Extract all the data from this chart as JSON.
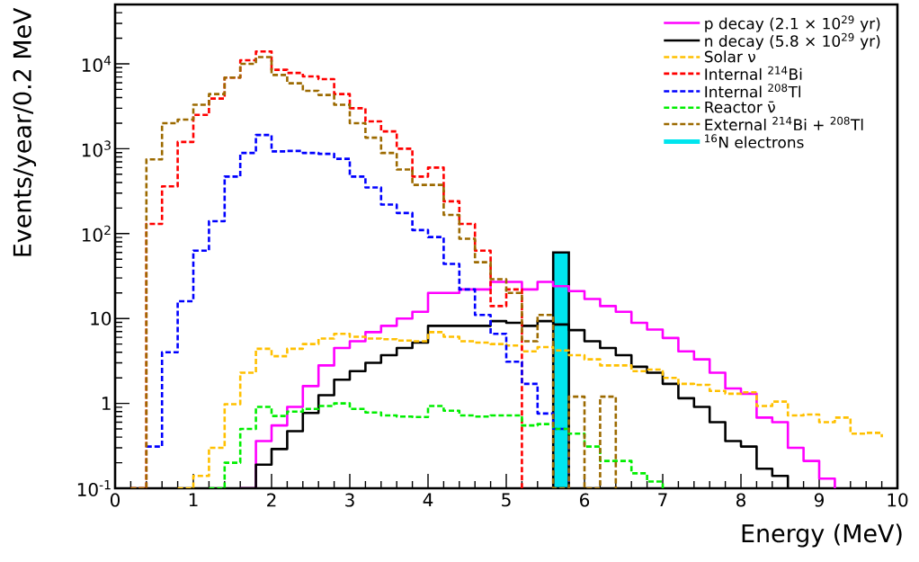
{
  "chart_data": {
    "type": "step",
    "xlabel": "Energy (MeV)",
    "ylabel": "Events/year/0.2 MeV",
    "x": [
      0,
      0.2,
      0.4,
      0.6,
      0.8,
      1,
      1.2,
      1.4,
      1.6,
      1.8,
      2,
      2.2,
      2.4,
      2.6,
      2.8,
      3,
      3.2,
      3.4,
      3.6,
      3.8,
      4,
      4.2,
      4.4,
      4.6,
      4.8,
      5,
      5.2,
      5.4,
      5.6,
      5.8,
      6,
      6.2,
      6.4,
      6.6,
      6.8,
      7,
      7.2,
      7.4,
      7.6,
      7.8,
      8,
      8.2,
      8.4,
      8.6,
      8.8,
      9,
      9.2,
      9.4,
      9.6,
      9.8
    ],
    "xlim": [
      0,
      10
    ],
    "xticks": [
      0,
      1,
      2,
      3,
      4,
      5,
      6,
      7,
      8,
      9,
      10
    ],
    "ylim": [
      0.1,
      50000
    ],
    "log": "y",
    "yticks": [
      {
        "value": 0.1,
        "label": "10$^{-1}$"
      },
      1,
      10,
      {
        "value": 100,
        "label": "10$^{2}$"
      },
      {
        "value": 1000,
        "label": "10$^{3}$"
      },
      {
        "value": 10000,
        "label": "10$^{4}$"
      }
    ],
    "legend": "top right",
    "series": [
      {
        "name": "p decay (2.1 × 10$^{29}$ yr)",
        "line_style": "solid",
        "color": "#ff00ff",
        "values": [
          null,
          null,
          null,
          null,
          null,
          null,
          null,
          null,
          0.1,
          0.36,
          0.55,
          0.91,
          1.6,
          2.8,
          4.5,
          5.4,
          6.9,
          8.2,
          10,
          12,
          20,
          20,
          22,
          22,
          27,
          27,
          22,
          27,
          24,
          21,
          17,
          14,
          12,
          8.9,
          7.4,
          5.9,
          4.1,
          3.3,
          2.3,
          1.5,
          1.3,
          0.68,
          0.6,
          0.3,
          0.21,
          0.13,
          0.1,
          null,
          null,
          null
        ]
      },
      {
        "name": "n decay (5.8 × 10$^{29}$ yr)",
        "line_style": "solid",
        "color": "#000000",
        "values": [
          null,
          null,
          null,
          null,
          null,
          null,
          null,
          null,
          0.1,
          0.19,
          0.29,
          0.47,
          0.77,
          1.25,
          1.9,
          2.4,
          3.0,
          3.7,
          4.5,
          5.2,
          8.2,
          8.2,
          8.2,
          8.2,
          9.3,
          8.9,
          8.2,
          9.3,
          8.5,
          7.3,
          5.4,
          4.5,
          3.7,
          2.7,
          2.3,
          1.7,
          1.15,
          0.91,
          0.6,
          0.36,
          0.31,
          0.17,
          0.14,
          0.1,
          null,
          null,
          null,
          null,
          null,
          null
        ]
      },
      {
        "name": "Solar ν",
        "line_style": "dashed",
        "color": "#ffc000",
        "values": [
          null,
          null,
          null,
          null,
          0.1,
          0.14,
          0.3,
          0.98,
          2.3,
          4.4,
          3.6,
          4.4,
          5.0,
          5.8,
          6.6,
          6.1,
          5.8,
          5.7,
          5.5,
          5.4,
          6.9,
          6.1,
          5.4,
          5.2,
          5.0,
          4.8,
          4.1,
          4.6,
          4.2,
          3.7,
          3.3,
          2.8,
          2.8,
          2.4,
          2.5,
          2.0,
          1.7,
          1.65,
          1.4,
          1.3,
          1.35,
          0.93,
          1.05,
          0.72,
          0.74,
          0.6,
          0.68,
          0.44,
          0.45,
          0.4
        ]
      },
      {
        "name": "Internal $^{214}$Bi",
        "line_style": "dashed",
        "color": "#ff0000",
        "values": [
          null,
          0.1,
          130,
          360,
          1200,
          2500,
          3900,
          6900,
          11000,
          14000,
          8500,
          7800,
          7100,
          6600,
          4400,
          3000,
          2100,
          1600,
          1000,
          470,
          600,
          240,
          130,
          63,
          14,
          22,
          0.1,
          null,
          null,
          null,
          null,
          null,
          null,
          null,
          null,
          null,
          null,
          null,
          null,
          null,
          null,
          null,
          null,
          null,
          null,
          null,
          null,
          null,
          null,
          null
        ]
      },
      {
        "name": "Internal $^{208}$Tl",
        "line_style": "dashed",
        "color": "#0000ff",
        "values": [
          null,
          null,
          0.31,
          4.0,
          16,
          63,
          140,
          470,
          890,
          1450,
          930,
          940,
          890,
          870,
          760,
          470,
          350,
          220,
          175,
          110,
          91,
          44,
          22,
          11,
          6.6,
          3.1,
          1.7,
          0.76,
          0.5,
          0.1,
          null,
          null,
          null,
          null,
          null,
          null,
          null,
          null,
          null,
          null,
          null,
          null,
          null,
          null,
          null,
          null,
          null,
          null,
          null,
          null
        ]
      },
      {
        "name": "Reactor ν̄",
        "line_style": "dashed",
        "color": "#00ee00",
        "values": [
          null,
          null,
          null,
          null,
          null,
          null,
          0.1,
          0.2,
          0.5,
          0.91,
          0.71,
          0.8,
          0.86,
          0.93,
          1.0,
          0.86,
          0.78,
          0.72,
          0.7,
          0.69,
          0.93,
          0.82,
          0.72,
          0.7,
          0.72,
          0.72,
          0.55,
          0.57,
          0.5,
          0.44,
          0.31,
          0.21,
          0.21,
          0.15,
          0.12,
          0.1,
          null,
          null,
          null,
          null,
          null,
          null,
          null,
          null,
          null,
          null,
          null,
          null,
          null,
          null
        ]
      },
      {
        "name": "External $^{214}$Bi + $^{208}$Tl",
        "line_style": "dashed",
        "color": "#9c6a00",
        "values": [
          null,
          0.1,
          750,
          2000,
          2200,
          3300,
          4400,
          6900,
          10000,
          12000,
          7400,
          5900,
          4800,
          4300,
          3300,
          2000,
          1350,
          890,
          570,
          375,
          375,
          166,
          87,
          46,
          29,
          20,
          5.4,
          11,
          0.1,
          1.2,
          0.1,
          1.2,
          0.1,
          null,
          null,
          null,
          null,
          null,
          null,
          null,
          null,
          null,
          null,
          null,
          null,
          null,
          null,
          null,
          null,
          null
        ]
      },
      {
        "name": "$^{16}$N electrons",
        "type": "histogram",
        "color": "#00e5ee",
        "bins": [
          5.6,
          5.8
        ],
        "values": [
          60
        ]
      }
    ]
  }
}
